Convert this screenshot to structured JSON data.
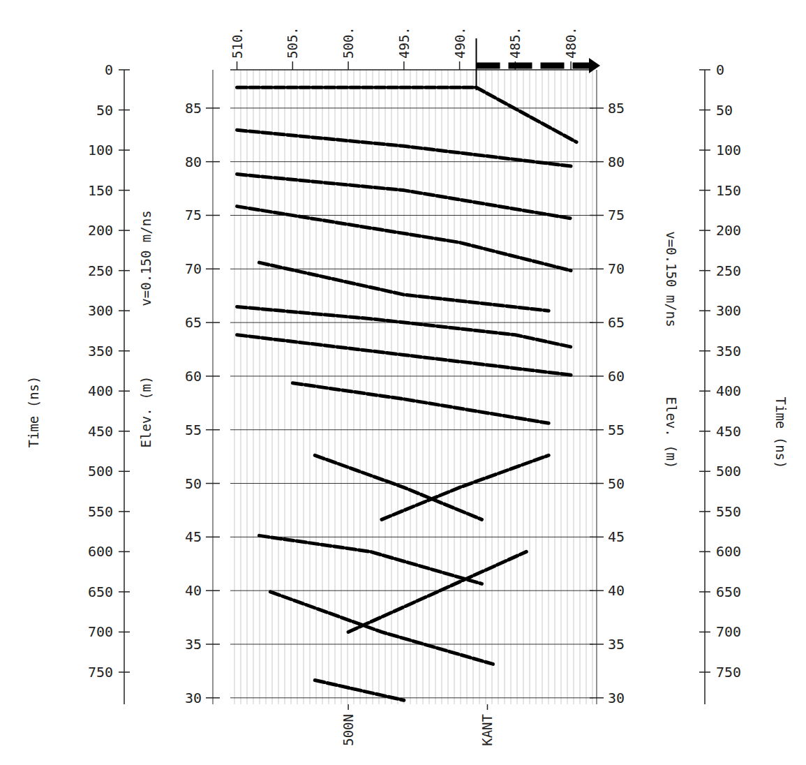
{
  "chart_data": {
    "type": "line",
    "y_label": "Time (ns)",
    "y2_labels": [
      "Elev. (m)",
      "v=0.150 m/ns"
    ],
    "annotations": [
      {
        "text": "500N",
        "x": 500
      },
      {
        "text": "KANT",
        "x": 487.5
      }
    ],
    "xlim": [
      510.6,
      478
    ],
    "xticks": [
      {
        "value": 510,
        "label": "510."
      },
      {
        "value": 505,
        "label": "505."
      },
      {
        "value": 500,
        "label": "500."
      },
      {
        "value": 495,
        "label": "495."
      },
      {
        "value": 490,
        "label": "490."
      },
      {
        "value": 485,
        "label": "485."
      },
      {
        "value": 480,
        "label": "480."
      }
    ],
    "ylim": [
      0,
      790
    ],
    "yticks": [
      0,
      50,
      100,
      150,
      200,
      250,
      300,
      350,
      400,
      450,
      500,
      550,
      600,
      650,
      700,
      750
    ],
    "y2lim": [
      88.57,
      29.4
    ],
    "y2ticks": [
      85,
      80,
      75,
      70,
      65,
      60,
      55,
      50,
      45,
      40,
      35,
      30
    ],
    "grid": true,
    "color": "#000000",
    "series": [
      {
        "x": [
          510,
          488.5,
          479.5
        ],
        "values": [
          22,
          22,
          90
        ]
      },
      {
        "x": [
          510,
          495,
          480
        ],
        "values": [
          75,
          95,
          120
        ]
      },
      {
        "x": [
          510,
          495,
          480
        ],
        "values": [
          130,
          150,
          185
        ]
      },
      {
        "x": [
          510,
          490,
          480
        ],
        "values": [
          170,
          215,
          250
        ]
      },
      {
        "x": [
          508,
          495,
          482
        ],
        "values": [
          240,
          280,
          300
        ]
      },
      {
        "x": [
          510,
          498,
          485,
          480
        ],
        "values": [
          295,
          310,
          330,
          345
        ]
      },
      {
        "x": [
          510,
          495,
          480
        ],
        "values": [
          330,
          355,
          380
        ]
      },
      {
        "x": [
          505,
          495,
          482
        ],
        "values": [
          390,
          410,
          440
        ]
      },
      {
        "x": [
          503,
          495,
          488
        ],
        "values": [
          480,
          520,
          560
        ]
      },
      {
        "x": [
          508,
          498,
          488
        ],
        "values": [
          580,
          600,
          640
        ]
      },
      {
        "x": [
          507,
          497,
          487
        ],
        "values": [
          650,
          700,
          740
        ]
      },
      {
        "x": [
          497,
          490,
          482
        ],
        "values": [
          560,
          520,
          480
        ]
      },
      {
        "x": [
          500,
          492,
          484
        ],
        "values": [
          700,
          650,
          600
        ]
      },
      {
        "x": [
          503,
          495
        ],
        "values": [
          760,
          785
        ]
      }
    ]
  }
}
